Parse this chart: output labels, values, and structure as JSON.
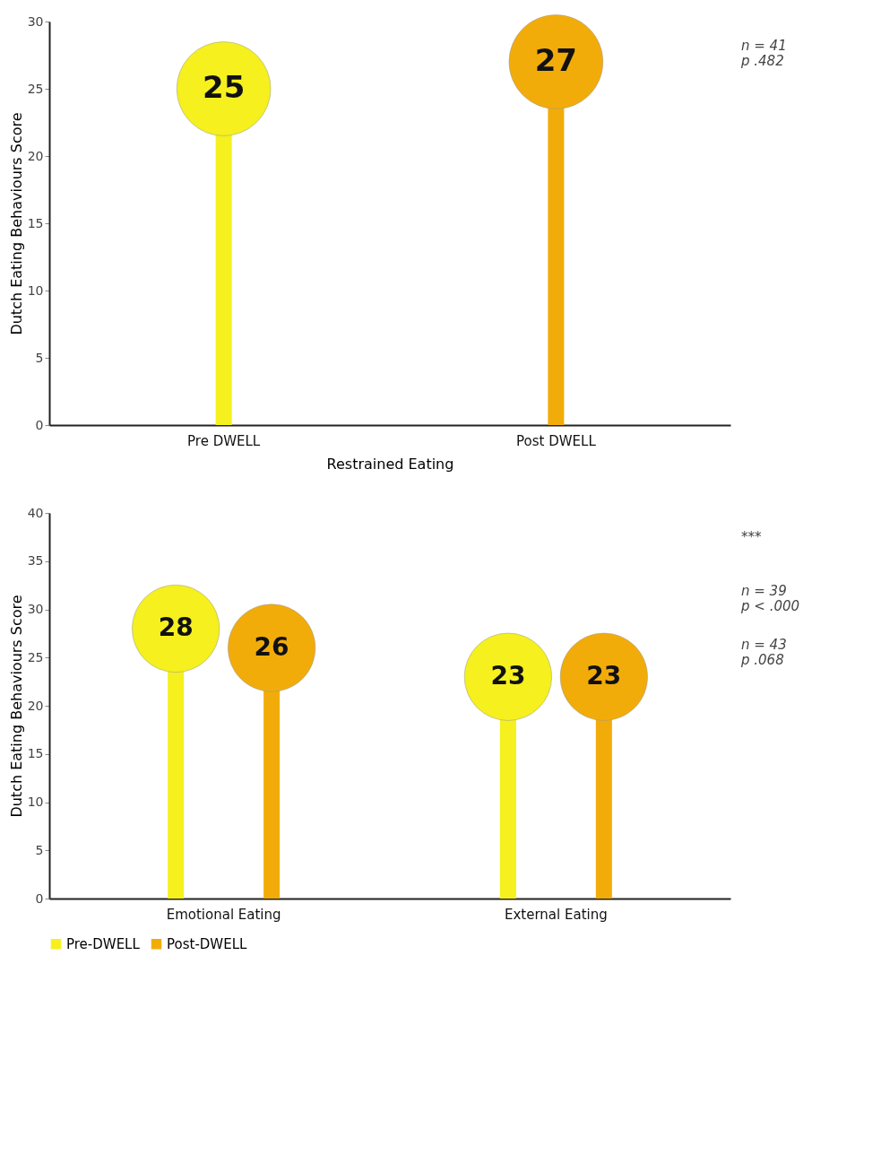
{
  "chart_data": [
    {
      "type": "lollipop",
      "categories": [
        "Pre DWELL",
        "Post DWELL"
      ],
      "values": [
        25,
        27
      ],
      "colors": [
        "#f5f01e",
        "#f2ac0a"
      ],
      "data_labels": true,
      "xlabel": "Restrained Eating",
      "ylabel": "Dutch Eating Behaviours Score",
      "ylim": [
        0,
        30
      ],
      "yticks": [
        0,
        5,
        10,
        15,
        20,
        25,
        30
      ],
      "grid": false,
      "legend": false,
      "annotations": [
        "n = 41\np .482"
      ]
    },
    {
      "type": "lollipop",
      "categories": [
        "Emotional Eating",
        "External Eating"
      ],
      "series": [
        {
          "name": "Pre-DWELL",
          "color": "#f5f01e",
          "values": [
            28,
            23
          ]
        },
        {
          "name": "Post-DWELL",
          "color": "#f2ac0a",
          "values": [
            26,
            23
          ]
        }
      ],
      "data_labels": true,
      "ylabel": "Dutch Eating Behaviours Score",
      "ylim": [
        0,
        40
      ],
      "yticks": [
        0,
        5,
        10,
        15,
        20,
        25,
        30,
        35,
        40
      ],
      "grid": false,
      "legend": "bottom",
      "annotations": [
        "***",
        "n = 39\np < .000",
        "n = 43\np .068"
      ]
    }
  ]
}
